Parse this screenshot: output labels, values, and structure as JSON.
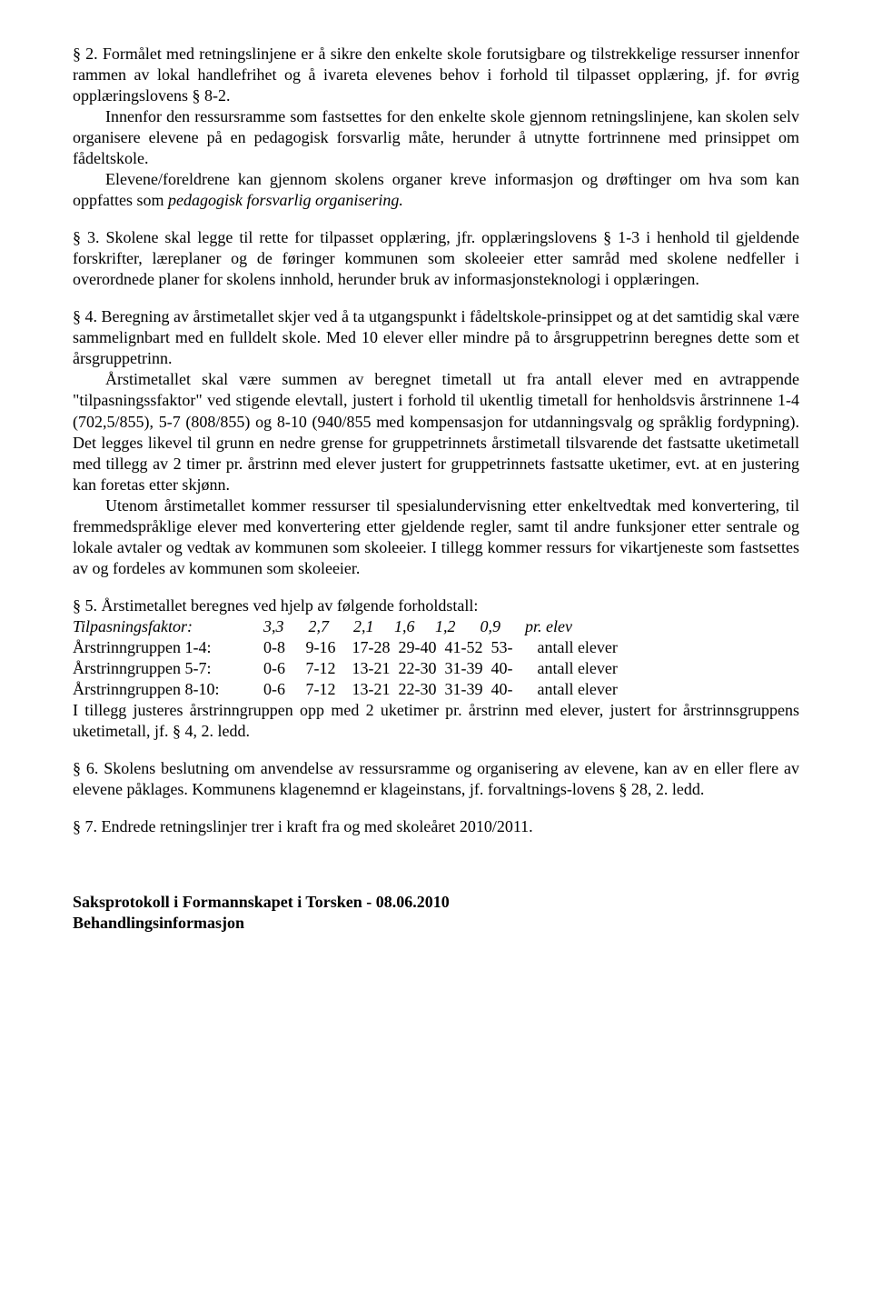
{
  "s2": {
    "p1": "§ 2.  Formålet med retningslinjene er å sikre den enkelte skole forutsigbare og tilstrekkelige ressurser innenfor rammen av lokal handlefrihet og å ivareta elevenes behov i forhold til tilpasset opplæring, jf. for øvrig opplæringslovens § 8-2.",
    "p2": "Innenfor den ressursramme som fastsettes for den enkelte skole gjennom retningslinjene, kan skolen selv organisere elevene på en pedagogisk forsvarlig måte, herunder å utnytte fortrinnene med prinsippet om fådeltskole.",
    "p3a": "Elevene/foreldrene kan gjennom skolens organer kreve informasjon og drøftinger om hva som kan oppfattes som ",
    "p3b": "pedagogisk forsvarlig organisering."
  },
  "s3": {
    "p1": "§ 3.  Skolene skal legge til rette for tilpasset opplæring, jfr. opplæringslovens § 1-3 i henhold til gjeldende forskrifter, læreplaner og de føringer kommunen som skoleeier etter samråd med skolene nedfeller i overordnede planer for skolens innhold, herunder bruk av informasjonsteknologi i opplæringen."
  },
  "s4": {
    "p1": "§ 4.  Beregning av årstimetallet skjer ved å ta utgangspunkt i fådeltskole-prinsippet og at det samtidig skal være sammelignbart med en fulldelt skole. Med 10 elever eller mindre på to årsgruppetrinn beregnes dette som et årsgruppetrinn.",
    "p2": "Årstimetallet skal være summen av beregnet timetall ut fra antall elever med en avtrappende \"tilpasningssfaktor\" ved stigende elevtall, justert i forhold til ukentlig timetall for henholdsvis årstrinnene 1-4 (702,5/855), 5-7 (808/855) og 8-10 (940/855 med kompensasjon for utdanningsvalg og språklig fordypning). Det legges likevel til grunn en nedre grense for gruppetrinnets årstimetall tilsvarende det fastsatte uketimetall med tillegg av 2 timer pr. årstrinn med elever justert for gruppetrinnets fastsatte uketimer, evt. at en justering kan foretas etter skjønn.",
    "p3": "Utenom årstimetallet kommer ressurser til spesialundervisning etter enkeltvedtak med konvertering, til fremmedspråklige elever med konvertering etter gjeldende regler, samt til andre funksjoner etter sentrale og lokale avtaler og vedtak av kommunen som skoleeier. I tillegg kommer ressurs for vikartjeneste som fastsettes av og fordeles av kommunen som skoleeier."
  },
  "s5": {
    "intro": "§ 5.  Årstimetallet beregnes ved hjelp av følgende forholdstall:",
    "rows": [
      {
        "label": "Tilpasningsfaktor:",
        "nums": "3,3      2,7      2,1     1,6     1,2      0,9      pr. elev",
        "italic_label": true
      },
      {
        "label": "Årstrinngruppen 1-4:",
        "nums": "0-8     9-16    17-28  29-40  41-52  53-      antall elever",
        "italic_label": false
      },
      {
        "label": "Årstrinngruppen 5-7:",
        "nums": "0-6     7-12    13-21  22-30  31-39  40-      antall elever",
        "italic_label": false
      },
      {
        "label": "Årstrinngruppen 8-10:",
        "nums": "0-6     7-12    13-21  22-30  31-39  40-      antall elever",
        "italic_label": false
      }
    ],
    "after": "I tillegg justeres årstrinngruppen opp med 2 uketimer pr. årstrinn med elever, justert for årstrinnsgruppens uketimetall, jf. § 4, 2. ledd."
  },
  "s6": {
    "p1": "§ 6.  Skolens beslutning om anvendelse av ressursramme og organisering av elevene, kan av en eller flere av elevene påklages. Kommunens klagenemnd er klageinstans, jf. forvaltnings-lovens § 28, 2. ledd."
  },
  "s7": {
    "p1": "§ 7.  Endrede retningslinjer trer i kraft fra og med skoleåret 2010/2011."
  },
  "footer": {
    "line1": "Saksprotokoll i Formannskapet i Torsken - 08.06.2010",
    "line2": "Behandlingsinformasjon"
  }
}
